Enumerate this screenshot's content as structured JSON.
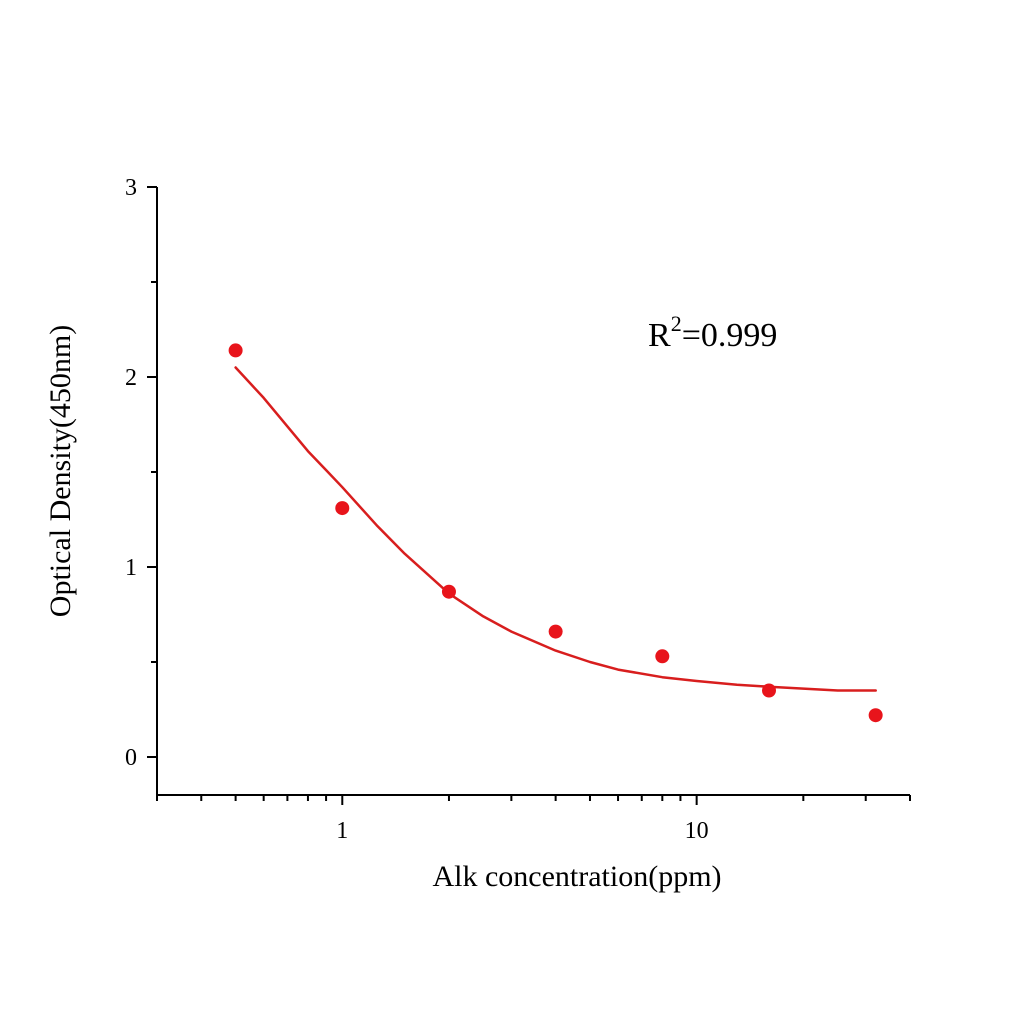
{
  "chart_data": {
    "type": "scatter",
    "title": "",
    "xlabel": "Alk  concentration(ppm)",
    "ylabel": "Optical Density(450nm)",
    "x_scale": "log",
    "xlim": [
      0.3,
      40
    ],
    "ylim": [
      -0.2,
      3
    ],
    "x_ticks": [
      1,
      10
    ],
    "x_tick_labels": [
      "1",
      "10"
    ],
    "y_ticks": [
      0,
      1,
      2,
      3
    ],
    "y_tick_labels": [
      "0",
      "1",
      "2",
      "3"
    ],
    "grid": false,
    "legend": "none",
    "colors": {
      "points": "#e8141b",
      "fit": "#d81e1e",
      "axis": "#000000"
    },
    "series": [
      {
        "kind": "points",
        "x": [
          0.5,
          1,
          2,
          4,
          8,
          16,
          32
        ],
        "y": [
          2.14,
          1.31,
          0.87,
          0.66,
          0.53,
          0.35,
          0.22
        ]
      },
      {
        "kind": "fitted-curve",
        "x": [
          0.5,
          0.6,
          0.7,
          0.8,
          0.9,
          1,
          1.25,
          1.5,
          2,
          2.5,
          3,
          4,
          5,
          6,
          8,
          10,
          13,
          16,
          20,
          25,
          32
        ],
        "y": [
          2.05,
          1.89,
          1.74,
          1.61,
          1.51,
          1.42,
          1.22,
          1.07,
          0.86,
          0.74,
          0.66,
          0.56,
          0.5,
          0.46,
          0.42,
          0.4,
          0.38,
          0.37,
          0.36,
          0.35,
          0.35
        ]
      }
    ],
    "annotations": [
      {
        "base": "R",
        "sup": "2",
        "rest": "=0.999"
      }
    ]
  }
}
